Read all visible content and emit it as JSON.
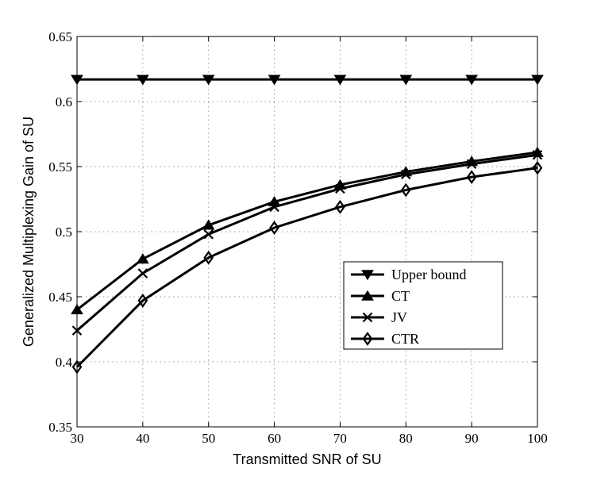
{
  "chart_data": {
    "type": "line",
    "title": "",
    "xlabel": "Transmitted SNR of SU",
    "ylabel": "Generalized Multiplexing Gain of SU",
    "xlim": [
      30,
      100
    ],
    "ylim": [
      0.35,
      0.65
    ],
    "x_ticks": [
      "30",
      "40",
      "50",
      "60",
      "70",
      "80",
      "90",
      "100"
    ],
    "y_ticks": [
      "0.35",
      "0.4",
      "0.45",
      "0.5",
      "0.55",
      "0.6",
      "0.65"
    ],
    "grid": true,
    "legend_position": "center-right",
    "x": [
      30,
      40,
      50,
      60,
      70,
      80,
      90,
      100
    ],
    "series": [
      {
        "name": "Upper bound",
        "marker": "triangle-down",
        "values": [
          0.617,
          0.617,
          0.617,
          0.617,
          0.617,
          0.617,
          0.617,
          0.617
        ]
      },
      {
        "name": "CT",
        "marker": "triangle-up",
        "values": [
          0.44,
          0.479,
          0.505,
          0.523,
          0.536,
          0.546,
          0.554,
          0.561
        ]
      },
      {
        "name": "JV",
        "marker": "x",
        "values": [
          0.424,
          0.468,
          0.498,
          0.519,
          0.533,
          0.544,
          0.552,
          0.559
        ]
      },
      {
        "name": "CTR",
        "marker": "diamond",
        "values": [
          0.396,
          0.447,
          0.48,
          0.503,
          0.519,
          0.532,
          0.542,
          0.549
        ]
      }
    ]
  }
}
